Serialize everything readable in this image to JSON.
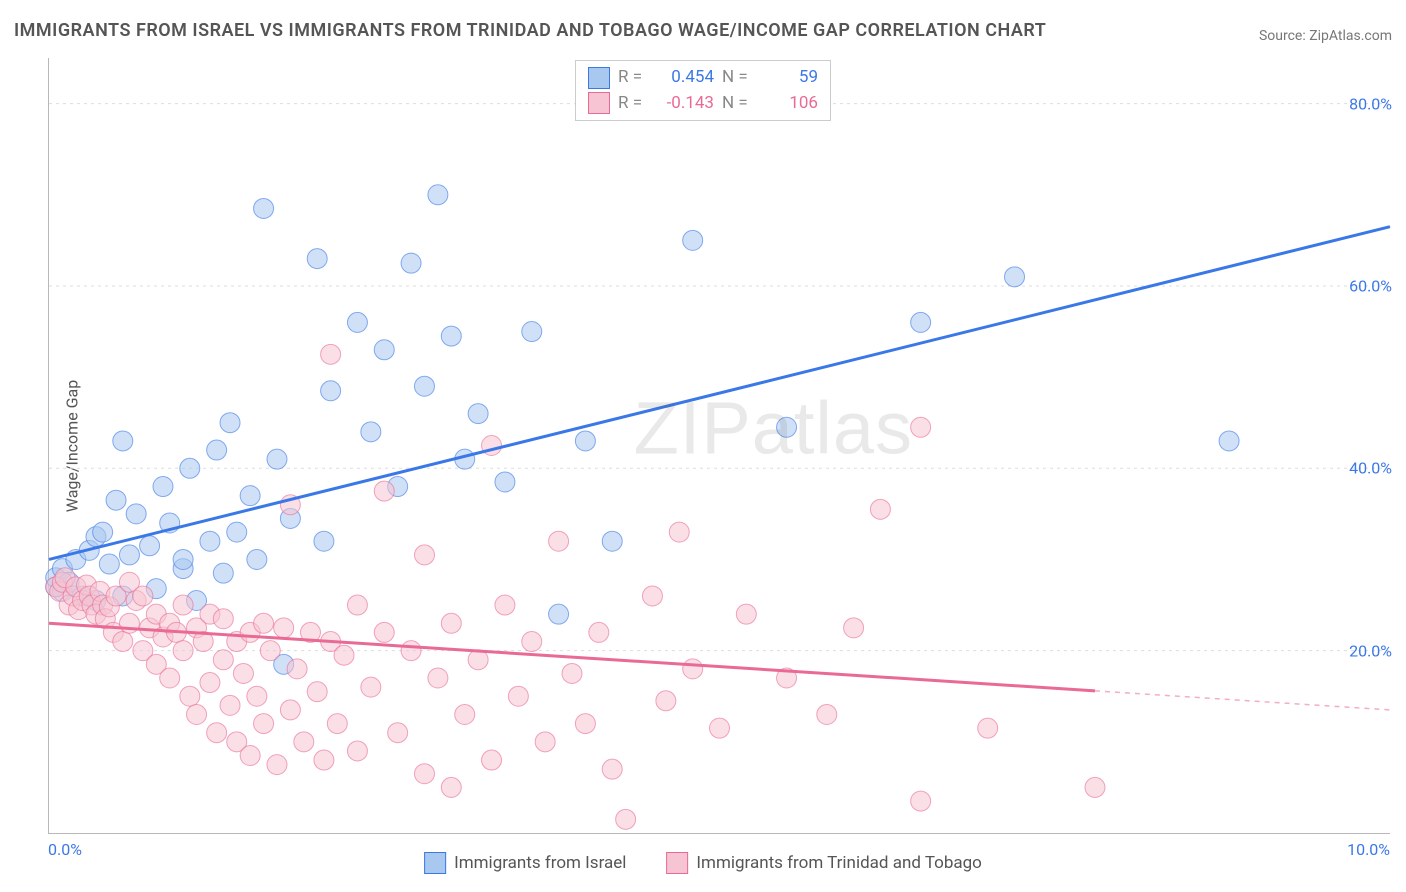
{
  "title": "IMMIGRANTS FROM ISRAEL VS IMMIGRANTS FROM TRINIDAD AND TOBAGO WAGE/INCOME GAP CORRELATION CHART",
  "source_prefix": "Source: ",
  "source_name": "ZipAtlas.com",
  "ylabel": "Wage/Income Gap",
  "watermark": "ZIPatlas",
  "chart": {
    "type": "scatter",
    "background_color": "#ffffff",
    "grid_color": "#dddddd",
    "axis_color": "#b8b8b8",
    "tick_color": "#3b78e7",
    "xlim": [
      0.0,
      10.0
    ],
    "ylim": [
      0.0,
      85.0
    ],
    "xtick_labels": [
      "0.0%",
      "10.0%"
    ],
    "yticks": [
      20.0,
      40.0,
      60.0,
      80.0
    ],
    "ytick_labels": [
      "20.0%",
      "40.0%",
      "60.0%",
      "80.0%"
    ],
    "point_radius": 10,
    "point_opacity": 0.55,
    "line_width": 3,
    "series": [
      {
        "name": "Immigrants from Israel",
        "fill_color": "#a9c8f0",
        "stroke_color": "#3b78e7",
        "stats": {
          "R": "0.454",
          "N": "59"
        },
        "regression": {
          "x1": 0.0,
          "y1": 30.0,
          "x2": 10.0,
          "y2": 66.5,
          "dash_after_x": null
        },
        "points": [
          [
            0.05,
            27.0
          ],
          [
            0.05,
            28.0
          ],
          [
            0.1,
            26.5
          ],
          [
            0.1,
            29.0
          ],
          [
            0.15,
            27.5
          ],
          [
            0.2,
            30.0
          ],
          [
            0.25,
            26.0
          ],
          [
            0.3,
            31.0
          ],
          [
            0.35,
            32.5
          ],
          [
            0.35,
            25.5
          ],
          [
            0.4,
            33.0
          ],
          [
            0.45,
            29.5
          ],
          [
            0.5,
            36.5
          ],
          [
            0.55,
            26.0
          ],
          [
            0.6,
            30.5
          ],
          [
            0.55,
            43.0
          ],
          [
            0.65,
            35.0
          ],
          [
            0.75,
            31.5
          ],
          [
            0.8,
            26.8
          ],
          [
            0.85,
            38.0
          ],
          [
            0.9,
            34.0
          ],
          [
            1.0,
            29.0
          ],
          [
            1.0,
            30.0
          ],
          [
            1.05,
            40.0
          ],
          [
            1.1,
            25.5
          ],
          [
            1.2,
            32.0
          ],
          [
            1.25,
            42.0
          ],
          [
            1.3,
            28.5
          ],
          [
            1.35,
            45.0
          ],
          [
            1.4,
            33.0
          ],
          [
            1.5,
            37.0
          ],
          [
            1.55,
            30.0
          ],
          [
            1.6,
            68.5
          ],
          [
            1.7,
            41.0
          ],
          [
            1.75,
            18.5
          ],
          [
            1.8,
            34.5
          ],
          [
            2.0,
            63.0
          ],
          [
            2.05,
            32.0
          ],
          [
            2.1,
            48.5
          ],
          [
            2.3,
            56.0
          ],
          [
            2.4,
            44.0
          ],
          [
            2.5,
            53.0
          ],
          [
            2.6,
            38.0
          ],
          [
            2.7,
            62.5
          ],
          [
            2.8,
            49.0
          ],
          [
            2.9,
            70.0
          ],
          [
            3.0,
            54.5
          ],
          [
            3.1,
            41.0
          ],
          [
            3.2,
            46.0
          ],
          [
            3.4,
            38.5
          ],
          [
            3.6,
            55.0
          ],
          [
            3.8,
            24.0
          ],
          [
            4.0,
            43.0
          ],
          [
            4.2,
            32.0
          ],
          [
            4.8,
            65.0
          ],
          [
            5.5,
            44.5
          ],
          [
            6.5,
            56.0
          ],
          [
            7.2,
            61.0
          ],
          [
            8.8,
            43.0
          ]
        ]
      },
      {
        "name": "Immigrants from Trinidad and Tobago",
        "fill_color": "#f6c4d2",
        "stroke_color": "#e96a94",
        "stats": {
          "R": "-0.143",
          "N": "106"
        },
        "regression": {
          "x1": 0.0,
          "y1": 23.0,
          "x2": 10.0,
          "y2": 13.5,
          "dash_after_x": 7.8
        },
        "points": [
          [
            0.05,
            27.0
          ],
          [
            0.08,
            26.5
          ],
          [
            0.1,
            27.5
          ],
          [
            0.12,
            28.0
          ],
          [
            0.15,
            25.0
          ],
          [
            0.18,
            26.0
          ],
          [
            0.2,
            27.0
          ],
          [
            0.22,
            24.5
          ],
          [
            0.25,
            25.5
          ],
          [
            0.28,
            27.2
          ],
          [
            0.3,
            26.0
          ],
          [
            0.32,
            25.0
          ],
          [
            0.35,
            24.0
          ],
          [
            0.38,
            26.5
          ],
          [
            0.4,
            25.0
          ],
          [
            0.42,
            23.5
          ],
          [
            0.45,
            24.8
          ],
          [
            0.48,
            22.0
          ],
          [
            0.5,
            26.0
          ],
          [
            0.55,
            21.0
          ],
          [
            0.6,
            23.0
          ],
          [
            0.6,
            27.5
          ],
          [
            0.65,
            25.5
          ],
          [
            0.7,
            20.0
          ],
          [
            0.7,
            26.0
          ],
          [
            0.75,
            22.5
          ],
          [
            0.8,
            24.0
          ],
          [
            0.8,
            18.5
          ],
          [
            0.85,
            21.5
          ],
          [
            0.9,
            23.0
          ],
          [
            0.9,
            17.0
          ],
          [
            0.95,
            22.0
          ],
          [
            1.0,
            20.0
          ],
          [
            1.0,
            25.0
          ],
          [
            1.05,
            15.0
          ],
          [
            1.1,
            22.5
          ],
          [
            1.1,
            13.0
          ],
          [
            1.15,
            21.0
          ],
          [
            1.2,
            16.5
          ],
          [
            1.2,
            24.0
          ],
          [
            1.25,
            11.0
          ],
          [
            1.3,
            19.0
          ],
          [
            1.3,
            23.5
          ],
          [
            1.35,
            14.0
          ],
          [
            1.4,
            21.0
          ],
          [
            1.4,
            10.0
          ],
          [
            1.45,
            17.5
          ],
          [
            1.5,
            22.0
          ],
          [
            1.5,
            8.5
          ],
          [
            1.55,
            15.0
          ],
          [
            1.6,
            23.0
          ],
          [
            1.6,
            12.0
          ],
          [
            1.65,
            20.0
          ],
          [
            1.7,
            7.5
          ],
          [
            1.75,
            22.5
          ],
          [
            1.8,
            13.5
          ],
          [
            1.8,
            36.0
          ],
          [
            1.85,
            18.0
          ],
          [
            1.9,
            10.0
          ],
          [
            1.95,
            22.0
          ],
          [
            2.0,
            15.5
          ],
          [
            2.05,
            8.0
          ],
          [
            2.1,
            21.0
          ],
          [
            2.1,
            52.5
          ],
          [
            2.15,
            12.0
          ],
          [
            2.2,
            19.5
          ],
          [
            2.3,
            9.0
          ],
          [
            2.3,
            25.0
          ],
          [
            2.4,
            16.0
          ],
          [
            2.5,
            22.0
          ],
          [
            2.5,
            37.5
          ],
          [
            2.6,
            11.0
          ],
          [
            2.7,
            20.0
          ],
          [
            2.8,
            6.5
          ],
          [
            2.8,
            30.5
          ],
          [
            2.9,
            17.0
          ],
          [
            3.0,
            5.0
          ],
          [
            3.0,
            23.0
          ],
          [
            3.1,
            13.0
          ],
          [
            3.2,
            19.0
          ],
          [
            3.3,
            42.5
          ],
          [
            3.3,
            8.0
          ],
          [
            3.4,
            25.0
          ],
          [
            3.5,
            15.0
          ],
          [
            3.6,
            21.0
          ],
          [
            3.7,
            10.0
          ],
          [
            3.8,
            32.0
          ],
          [
            3.9,
            17.5
          ],
          [
            4.0,
            12.0
          ],
          [
            4.1,
            22.0
          ],
          [
            4.2,
            7.0
          ],
          [
            4.3,
            1.5
          ],
          [
            4.5,
            26.0
          ],
          [
            4.6,
            14.5
          ],
          [
            4.7,
            33.0
          ],
          [
            4.8,
            18.0
          ],
          [
            5.0,
            11.5
          ],
          [
            5.2,
            24.0
          ],
          [
            5.5,
            17.0
          ],
          [
            5.8,
            13.0
          ],
          [
            6.0,
            22.5
          ],
          [
            6.2,
            35.5
          ],
          [
            6.5,
            44.5
          ],
          [
            6.5,
            3.5
          ],
          [
            7.0,
            11.5
          ],
          [
            7.8,
            5.0
          ]
        ]
      }
    ]
  },
  "legend_labels": {
    "R": "R =",
    "N": "N ="
  }
}
